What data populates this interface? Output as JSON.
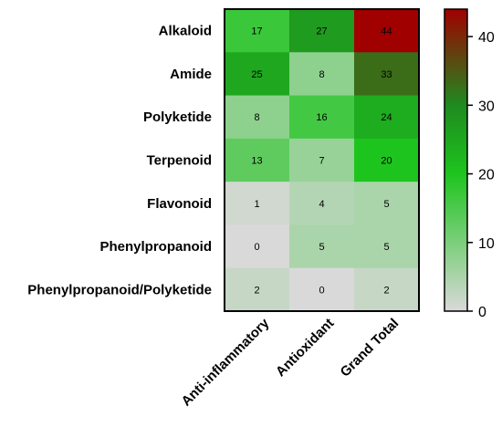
{
  "chart_data": {
    "type": "heatmap",
    "rows": [
      "Alkaloid",
      "Amide",
      "Polyketide",
      "Terpenoid",
      "Flavonoid",
      "Phenylpropanoid",
      "Phenylpropanoid/Polyketide"
    ],
    "columns": [
      "Anti-inflammatory",
      "Antioxidant",
      "Grand Total"
    ],
    "values": [
      [
        17,
        27,
        44
      ],
      [
        25,
        8,
        33
      ],
      [
        8,
        16,
        24
      ],
      [
        13,
        7,
        20
      ],
      [
        1,
        4,
        5
      ],
      [
        0,
        5,
        5
      ],
      [
        2,
        0,
        2
      ]
    ],
    "colorbar": {
      "min": 0,
      "max": 44,
      "ticks": [
        0,
        10,
        20,
        30,
        40
      ],
      "stops": [
        {
          "value": 0,
          "color": "#d9d9d9"
        },
        {
          "value": 20,
          "color": "#1ec41e"
        },
        {
          "value": 30,
          "color": "#1f8a1f"
        },
        {
          "value": 44,
          "color": "#a00000"
        }
      ]
    },
    "title": "",
    "xlabel": "",
    "ylabel": ""
  }
}
